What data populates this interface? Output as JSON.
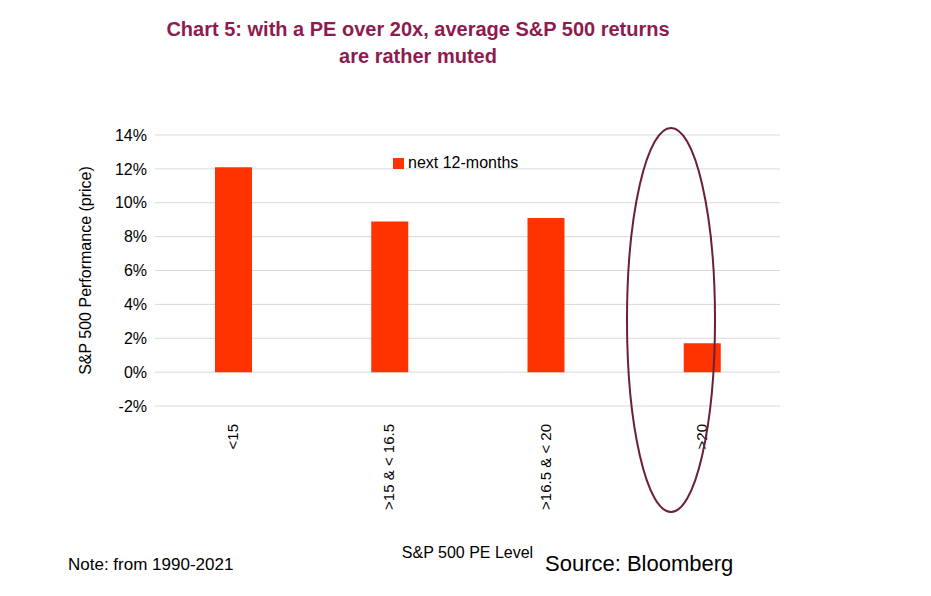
{
  "chart_data": {
    "type": "bar",
    "title": "Chart 5: with a PE over 20x, average S&P 500 returns are rather muted",
    "categories": [
      "<15",
      ">15 & < 16.5",
      ">16.5 & < 20",
      ">20"
    ],
    "series": [
      {
        "name": "next 12-months",
        "color": "#ff3300",
        "values": [
          12.1,
          8.9,
          9.1,
          1.7
        ]
      }
    ],
    "x_label": "S&P 500 PE Level",
    "y_label": "S&P 500 Performance (price)",
    "ylim": [
      -2,
      14
    ],
    "yticks": [
      {
        "value": -2,
        "label": "-2%"
      },
      {
        "value": 0,
        "label": "0%"
      },
      {
        "value": 2,
        "label": "2%"
      },
      {
        "value": 4,
        "label": "4%"
      },
      {
        "value": 6,
        "label": "6%"
      },
      {
        "value": 8,
        "label": "8%"
      },
      {
        "value": 10,
        "label": "10%"
      },
      {
        "value": 12,
        "label": "12%"
      },
      {
        "value": 14,
        "label": "14%"
      }
    ],
    "grid": true,
    "legend": "top",
    "annotations": [
      "Note: from 1990-2021",
      "Source: Bloomberg"
    ]
  }
}
